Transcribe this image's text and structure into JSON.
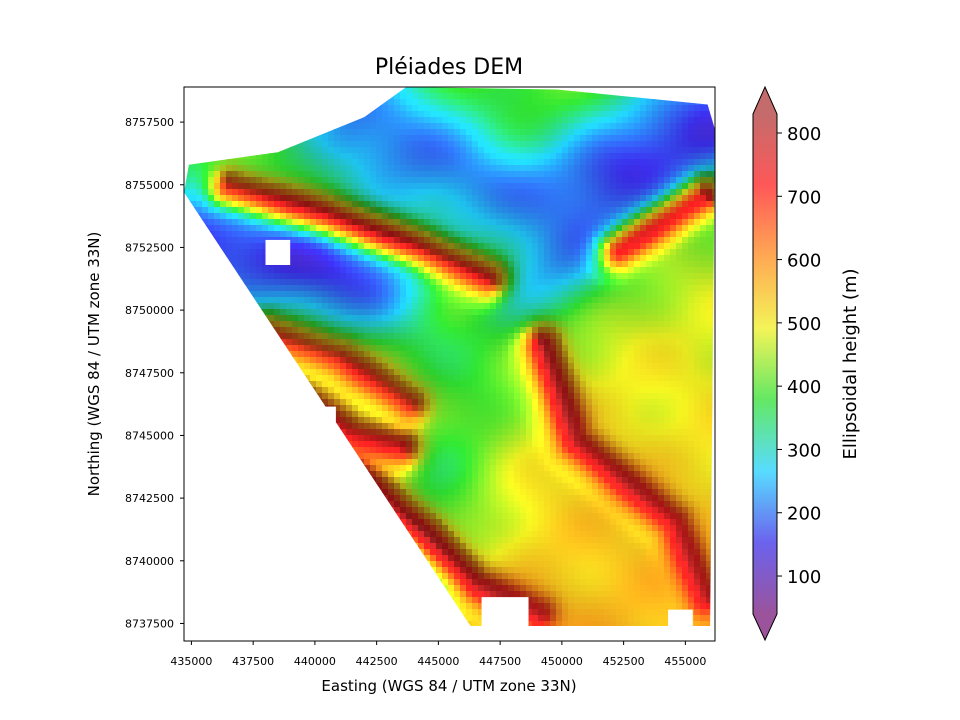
{
  "chart_data": {
    "type": "heatmap",
    "title": "Pléiades DEM",
    "xlabel": "Easting (WGS 84 / UTM zone 33N)",
    "ylabel": "Northing (WGS 84 / UTM zone 33N)",
    "xlim": [
      434700,
      456200
    ],
    "ylim": [
      8736800,
      8758900
    ],
    "xticks": [
      435000,
      437500,
      440000,
      442500,
      445000,
      447500,
      450000,
      452500,
      455000
    ],
    "xtick_labels": [
      "435000",
      "437500",
      "440000",
      "442500",
      "445000",
      "447500",
      "450000",
      "452500",
      "455000"
    ],
    "yticks": [
      8737500,
      8740000,
      8742500,
      8745000,
      8747500,
      8750000,
      8752500,
      8755000,
      8757500
    ],
    "ytick_labels": [
      "8737500",
      "8740000",
      "8742500",
      "8745000",
      "8747500",
      "8750000",
      "8752500",
      "8755000",
      "8757500"
    ],
    "colorbar": {
      "label": "Ellipsoidal height (m)",
      "range": [
        40,
        830
      ],
      "ticks": [
        100,
        200,
        300,
        400,
        500,
        600,
        700,
        800
      ],
      "tick_labels": [
        "100",
        "200",
        "300",
        "400",
        "500",
        "600",
        "700",
        "800"
      ],
      "extend": "both",
      "colormap": [
        "#7a1a7a",
        "#3a2ee8",
        "#20d0ff",
        "#30e030",
        "#f0f020",
        "#ff8c1a",
        "#ff2020",
        "#b03a3a"
      ]
    },
    "data_extent_polygon": [
      [
        434900,
        8755800
      ],
      [
        438500,
        8756300
      ],
      [
        442000,
        8757700
      ],
      [
        443700,
        8758900
      ],
      [
        449800,
        8758800
      ],
      [
        455900,
        8758200
      ],
      [
        456200,
        8757200
      ],
      [
        456000,
        8737400
      ],
      [
        446300,
        8737400
      ],
      [
        434700,
        8754700
      ]
    ],
    "nodata_gaps": [
      {
        "center": [
          438500,
          8752300
        ],
        "size": [
          1000,
          1000
        ]
      },
      {
        "center": [
          440500,
          8745800
        ],
        "size": [
          700,
          700
        ]
      },
      {
        "center": [
          454800,
          8737700
        ],
        "size": [
          1000,
          700
        ]
      },
      {
        "center": [
          447700,
          8737900
        ],
        "size": [
          1900,
          1300
        ]
      }
    ],
    "elevation_field": {
      "valleys": [
        {
          "name": "",
          "path": [
            [
              434900,
              8752800
            ],
            [
              441000,
              8751500
            ],
            [
              445500,
              8751000
            ],
            [
              449000,
              8753000
            ],
            [
              452500,
              8755500
            ],
            [
              456000,
              8757500
            ]
          ],
          "height": 150
        },
        {
          "name": "",
          "path": [
            [
              442000,
              8757500
            ],
            [
              445500,
              8755500
            ],
            [
              449000,
              8753000
            ]
          ],
          "height": 200
        },
        {
          "name": "",
          "path": [
            [
              446000,
              8751000
            ],
            [
              446000,
              8747000
            ],
            [
              445000,
              8743000
            ],
            [
              444500,
              8740000
            ]
          ],
          "height": 380
        }
      ],
      "ridges": [
        {
          "path": [
            [
              436500,
              8754900
            ],
            [
              440500,
              8753800
            ],
            [
              444200,
              8752500
            ],
            [
              447000,
              8751200
            ]
          ],
          "height": 720
        },
        {
          "path": [
            [
              438000,
              8749000
            ],
            [
              441000,
              8748000
            ],
            [
              443800,
              8746200
            ]
          ],
          "height": 700
        },
        {
          "path": [
            [
              437500,
              8747500
            ],
            [
              441500,
              8745000
            ],
            [
              443500,
              8744500
            ]
          ],
          "height": 730
        },
        {
          "path": [
            [
              449200,
              8748600
            ],
            [
              450500,
              8744700
            ],
            [
              454500,
              8741500
            ],
            [
              455800,
              8738500
            ]
          ],
          "height": 760
        },
        {
          "path": [
            [
              441500,
              8743500
            ],
            [
              444500,
              8741000
            ],
            [
              446500,
              8739000
            ],
            [
              449000,
              8737800
            ]
          ],
          "height": 760
        },
        {
          "path": [
            [
              452300,
              8752300
            ],
            [
              455800,
              8754500
            ]
          ],
          "height": 720
        }
      ],
      "base_height": 560
    }
  }
}
